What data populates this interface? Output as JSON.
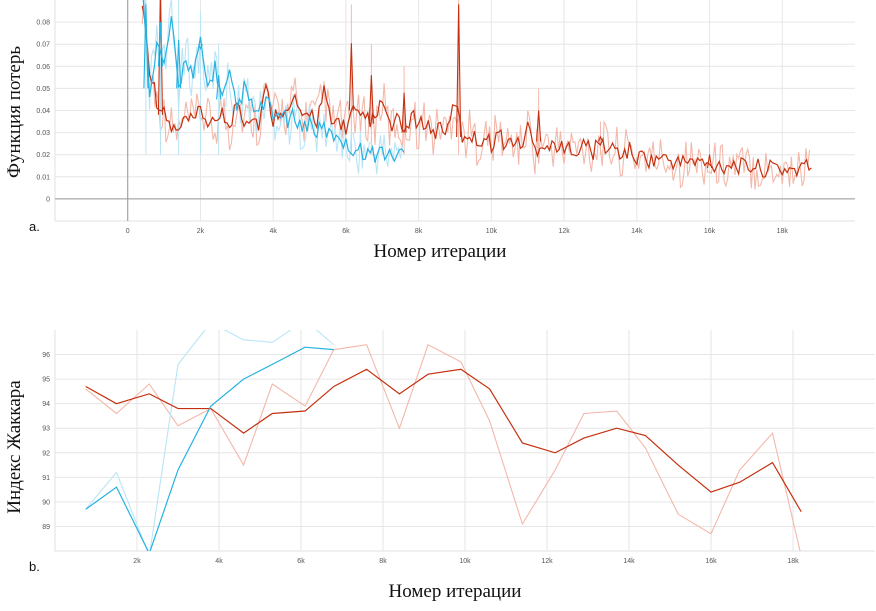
{
  "colors": {
    "orange": "#c4300f",
    "orange_light": "#f3b8aa",
    "cyan": "#27b1e0",
    "cyan_light": "#b9e5f5",
    "grid": "#e6e6e6"
  },
  "chart_data": [
    {
      "type": "line",
      "panel_label": "a.",
      "ylabel": "Функция потерь",
      "xlabel": "Номер итерации",
      "xlim": [
        -2000,
        20000
      ],
      "ylim": [
        -0.01,
        0.09
      ],
      "x_ticks": [
        {
          "v": 0,
          "label": "0"
        },
        {
          "v": 2000,
          "label": "2k"
        },
        {
          "v": 4000,
          "label": "4k"
        },
        {
          "v": 6000,
          "label": "6k"
        },
        {
          "v": 8000,
          "label": "8k"
        },
        {
          "v": 10000,
          "label": "10k"
        },
        {
          "v": 12000,
          "label": "12k"
        },
        {
          "v": 14000,
          "label": "14k"
        },
        {
          "v": 16000,
          "label": "16k"
        },
        {
          "v": 18000,
          "label": "18k"
        }
      ],
      "y_ticks": [
        {
          "v": 0,
          "label": "0"
        },
        {
          "v": 0.01,
          "label": "0.01"
        },
        {
          "v": 0.02,
          "label": "0.02"
        },
        {
          "v": 0.03,
          "label": "0.03"
        },
        {
          "v": 0.04,
          "label": "0.04"
        },
        {
          "v": 0.05,
          "label": "0.05"
        },
        {
          "v": 0.06,
          "label": "0.06"
        },
        {
          "v": 0.07,
          "label": "0.07"
        },
        {
          "v": 0.08,
          "label": "0.08"
        }
      ],
      "series": [
        {
          "color": "#c4300f",
          "raw_color": "#f3b8aa",
          "x": [
            400,
            600,
            800,
            1000,
            1200,
            1400,
            1600,
            1800,
            2000,
            2200,
            2400,
            2600,
            2800,
            3000,
            3200,
            3400,
            3600,
            3800,
            4000,
            4200,
            4400,
            4600,
            4800,
            5000,
            5200,
            5400,
            5600,
            5800,
            6000,
            6200,
            6400,
            6600,
            6800,
            7000,
            7200,
            7400,
            7600,
            7800,
            8000,
            8200,
            8400,
            8600,
            8800,
            9000,
            9200,
            9400,
            9600,
            9800,
            10000,
            10200,
            10400,
            10600,
            10800,
            11000,
            11200,
            11400,
            11600,
            11800,
            12000,
            12200,
            12400,
            12600,
            12800,
            13000,
            13200,
            13400,
            13600,
            13800,
            14000,
            14200,
            14400,
            14600,
            14800,
            15000,
            15200,
            15400,
            15600,
            15800,
            16000,
            16200,
            16400,
            16600,
            16800,
            17000,
            17200,
            17400,
            17600,
            17800,
            18000,
            18200,
            18400,
            18600,
            18800
          ],
          "y": [
            0.09,
            0.06,
            0.045,
            0.038,
            0.032,
            0.03,
            0.036,
            0.034,
            0.04,
            0.035,
            0.032,
            0.042,
            0.03,
            0.045,
            0.036,
            0.038,
            0.034,
            0.05,
            0.036,
            0.042,
            0.038,
            0.046,
            0.034,
            0.04,
            0.036,
            0.048,
            0.033,
            0.036,
            0.032,
            0.04,
            0.035,
            0.037,
            0.034,
            0.045,
            0.032,
            0.035,
            0.03,
            0.038,
            0.032,
            0.036,
            0.029,
            0.034,
            0.03,
            0.045,
            0.028,
            0.03,
            0.026,
            0.028,
            0.025,
            0.03,
            0.024,
            0.027,
            0.023,
            0.033,
            0.022,
            0.026,
            0.023,
            0.025,
            0.021,
            0.024,
            0.022,
            0.025,
            0.021,
            0.026,
            0.022,
            0.023,
            0.02,
            0.022,
            0.018,
            0.02,
            0.017,
            0.019,
            0.018,
            0.017,
            0.016,
            0.018,
            0.016,
            0.017,
            0.014,
            0.016,
            0.015,
            0.016,
            0.015,
            0.014,
            0.015,
            0.014,
            0.013,
            0.015,
            0.013,
            0.014,
            0.013,
            0.015,
            0.014
          ],
          "spikes": [
            [
              900,
              0.12
            ],
            [
              6150,
              0.088
            ],
            [
              6700,
              0.07
            ],
            [
              9100,
              0.11
            ],
            [
              7600,
              0.06
            ],
            [
              11300,
              0.05
            ],
            [
              13000,
              0.035
            ],
            [
              16000,
              0.025
            ]
          ]
        },
        {
          "color": "#27b1e0",
          "raw_color": "#b9e5f5",
          "x": [
            400,
            600,
            800,
            1000,
            1200,
            1400,
            1600,
            1800,
            2000,
            2200,
            2400,
            2600,
            2800,
            3000,
            3200,
            3400,
            3600,
            3800,
            4000,
            4200,
            4400,
            4600,
            4800,
            5000,
            5200,
            5400,
            5600,
            5800,
            6000,
            6200,
            6400,
            6600,
            6800,
            7000,
            7200,
            7400,
            7600
          ],
          "y": [
            0.1,
            0.05,
            0.07,
            0.06,
            0.08,
            0.05,
            0.065,
            0.055,
            0.07,
            0.05,
            0.06,
            0.045,
            0.055,
            0.04,
            0.05,
            0.042,
            0.038,
            0.045,
            0.036,
            0.04,
            0.034,
            0.038,
            0.032,
            0.035,
            0.03,
            0.032,
            0.028,
            0.03,
            0.024,
            0.023,
            0.022,
            0.021,
            0.02,
            0.022,
            0.019,
            0.02,
            0.021
          ],
          "spikes": [
            [
              500,
              0.11
            ],
            [
              900,
              0.1
            ],
            [
              1400,
              0.09
            ],
            [
              2000,
              0.085
            ],
            [
              2500,
              0.07
            ]
          ]
        }
      ]
    },
    {
      "type": "line",
      "panel_label": "b.",
      "ylabel": "Индекс Жаккара",
      "xlabel": "Номер итерации",
      "xlim": [
        0,
        20000
      ],
      "ylim": [
        88,
        97
      ],
      "x_ticks": [
        {
          "v": 2000,
          "label": "2k"
        },
        {
          "v": 4000,
          "label": "4k"
        },
        {
          "v": 6000,
          "label": "6k"
        },
        {
          "v": 8000,
          "label": "8k"
        },
        {
          "v": 10000,
          "label": "10k"
        },
        {
          "v": 12000,
          "label": "12k"
        },
        {
          "v": 14000,
          "label": "14k"
        },
        {
          "v": 16000,
          "label": "16k"
        },
        {
          "v": 18000,
          "label": "18k"
        }
      ],
      "y_ticks": [
        {
          "v": 89,
          "label": "89"
        },
        {
          "v": 90,
          "label": "90"
        },
        {
          "v": 91,
          "label": "91"
        },
        {
          "v": 92,
          "label": "92"
        },
        {
          "v": 93,
          "label": "93"
        },
        {
          "v": 94,
          "label": "94"
        },
        {
          "v": 95,
          "label": "95"
        },
        {
          "v": 96,
          "label": "96"
        }
      ],
      "series": [
        {
          "color": "#c4300f",
          "raw_color": "#f3b8aa",
          "x": [
            750,
            1500,
            2300,
            3000,
            3800,
            4600,
            5300,
            6100,
            6800,
            7600,
            8400,
            9100,
            9900,
            10600,
            11400,
            12200,
            12900,
            13700,
            14400,
            15200,
            16000,
            16700,
            17500,
            18200
          ],
          "y": [
            94.7,
            94.0,
            94.4,
            93.8,
            93.8,
            92.8,
            93.6,
            93.7,
            94.7,
            95.4,
            94.4,
            95.2,
            95.4,
            94.6,
            92.4,
            92.0,
            92.6,
            93.0,
            92.7,
            91.5,
            90.4,
            90.8,
            91.6,
            89.6
          ],
          "raw_y": [
            94.6,
            93.6,
            94.8,
            93.1,
            93.8,
            91.5,
            94.8,
            93.9,
            96.2,
            96.4,
            93.0,
            96.4,
            95.7,
            93.3,
            89.1,
            91.3,
            93.6,
            93.7,
            92.2,
            89.5,
            88.7,
            91.3,
            92.8,
            87.8
          ]
        },
        {
          "color": "#27b1e0",
          "raw_color": "#b9e5f5",
          "x": [
            750,
            1500,
            2300,
            3000,
            3800,
            4600,
            5300,
            6100,
            6800
          ],
          "y": [
            89.7,
            90.6,
            87.9,
            91.3,
            93.9,
            95.0,
            95.6,
            96.3,
            96.2
          ],
          "raw_y": [
            89.7,
            91.2,
            87.8,
            95.6,
            97.3,
            96.6,
            96.5,
            97.4,
            96.4
          ]
        }
      ]
    }
  ]
}
